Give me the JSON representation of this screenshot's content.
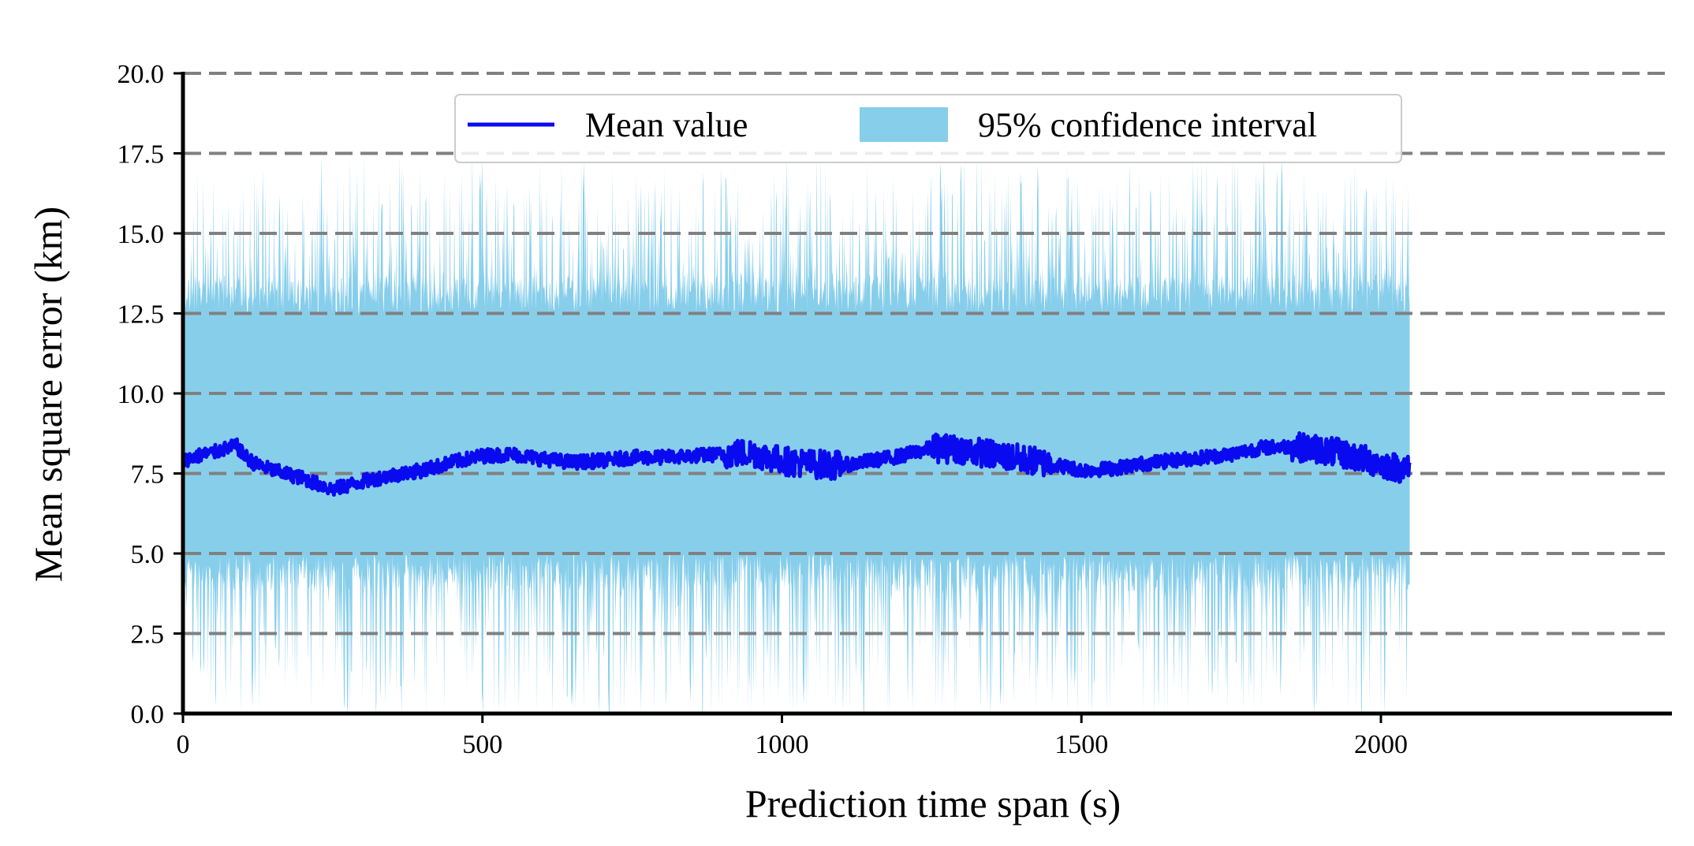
{
  "chart_data": {
    "type": "line",
    "title": "",
    "xlabel": "Prediction time span (s)",
    "ylabel": "Mean square error (km)",
    "xlim": [
      -100,
      2150
    ],
    "ylim": [
      0,
      20
    ],
    "x_ticks": [
      0,
      500,
      1000,
      1500,
      2000
    ],
    "x_tick_labels": [
      "0",
      "500",
      "1000",
      "1500",
      "2000"
    ],
    "y_ticks": [
      0,
      2.5,
      5,
      7.5,
      10,
      12.5,
      15,
      17.5,
      20
    ],
    "y_tick_labels": [
      "0.0",
      "2.5",
      "5.0",
      "7.5",
      "10.0",
      "12.5",
      "15.0",
      "17.5",
      "20.0"
    ],
    "grid": "horizontal dashed",
    "legend_position": "top-center",
    "colors": {
      "mean": "#0a0af0",
      "band": "#87ceeb",
      "grid": "#808080",
      "axis": "#000000"
    },
    "x_range": [
      0,
      2048
    ],
    "series": [
      {
        "name": "Mean value",
        "kind": "line",
        "x": [
          0,
          25,
          50,
          75,
          90,
          100,
          120,
          150,
          200,
          250,
          300,
          350,
          400,
          450,
          500,
          550,
          600,
          650,
          700,
          750,
          800,
          850,
          900,
          950,
          1000,
          1050,
          1100,
          1150,
          1200,
          1250,
          1300,
          1350,
          1400,
          1450,
          1500,
          1550,
          1600,
          1650,
          1700,
          1750,
          1800,
          1850,
          1900,
          1950,
          2000,
          2048
        ],
        "y": [
          7.9,
          8.05,
          8.15,
          8.3,
          8.35,
          8.1,
          7.8,
          7.6,
          7.35,
          7.0,
          7.25,
          7.45,
          7.6,
          7.85,
          8.05,
          8.1,
          7.95,
          7.85,
          7.9,
          8.0,
          8.0,
          8.05,
          8.1,
          8.15,
          7.9,
          7.8,
          7.75,
          7.9,
          8.05,
          8.3,
          8.25,
          8.1,
          7.95,
          7.8,
          7.6,
          7.65,
          7.8,
          7.9,
          8.0,
          8.1,
          8.3,
          8.35,
          8.25,
          8.05,
          7.8,
          7.6
        ]
      },
      {
        "name": "95% confidence interval",
        "kind": "band",
        "lower_base": 5.0,
        "upper_base": 12.5,
        "lower_min": 0.0,
        "upper_max": 17.5
      }
    ]
  }
}
